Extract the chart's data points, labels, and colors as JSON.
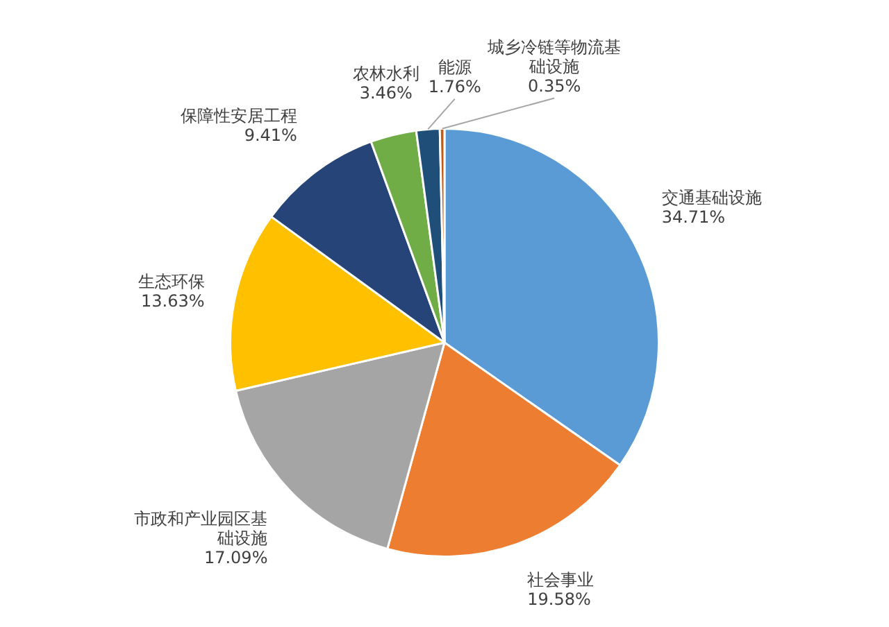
{
  "chart_data": {
    "type": "pie",
    "categories": [
      "交通基础设施",
      "社会事业",
      "市政和产业园区基础设施",
      "生态环保",
      "保障性安居工程",
      "农林水利",
      "能源",
      "城乡冷链等物流基础设施"
    ],
    "values": [
      34.71,
      19.58,
      17.09,
      13.63,
      9.41,
      3.46,
      1.76,
      0.35
    ],
    "value_labels": [
      "34.71%",
      "19.58%",
      "17.09%",
      "13.63%",
      "9.41%",
      "3.46%",
      "1.76%",
      "0.35%"
    ],
    "colors": [
      "#5b9bd5",
      "#ed7d31",
      "#a5a5a5",
      "#ffc000",
      "#264478",
      "#70ad47",
      "#1f4e79",
      "#c55a11"
    ],
    "legend": false
  }
}
